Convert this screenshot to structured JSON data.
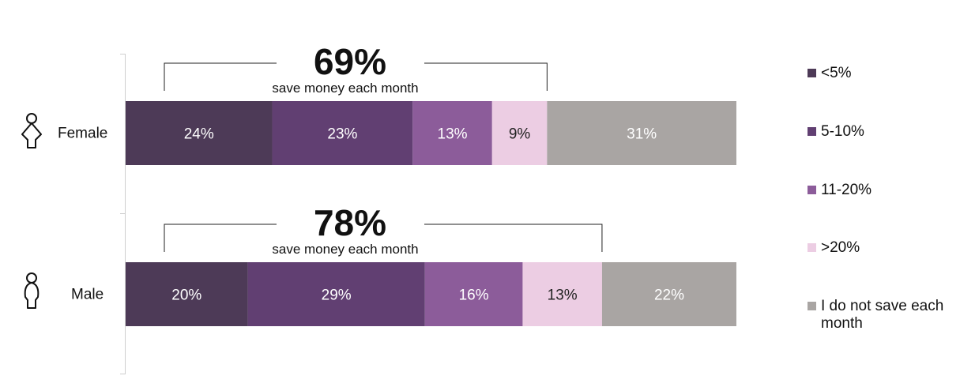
{
  "chart_data": {
    "type": "bar",
    "orientation": "horizontal",
    "stacked": true,
    "unit": "%",
    "categories": [
      "Female",
      "Male"
    ],
    "series": [
      {
        "name": "<5%",
        "color": "#4d3a57",
        "values": [
          24,
          20
        ]
      },
      {
        "name": "5-10%",
        "color": "#613f72",
        "values": [
          23,
          29
        ]
      },
      {
        "name": "11-20%",
        "color": "#8c5c9a",
        "values": [
          13,
          16
        ]
      },
      {
        "name": ">20%",
        "color": "#eccde3",
        "values": [
          9,
          13
        ]
      },
      {
        "name": "I do not save each month",
        "color": "#a9a5a3",
        "values": [
          31,
          22
        ]
      }
    ],
    "annotations": [
      {
        "category": "Female",
        "value": "69%",
        "text": "save money each month"
      },
      {
        "category": "Male",
        "value": "78%",
        "text": "save money each month"
      }
    ],
    "icons": [
      "female-icon",
      "male-icon"
    ],
    "legend_position": "right",
    "xlim": [
      0,
      100
    ]
  }
}
